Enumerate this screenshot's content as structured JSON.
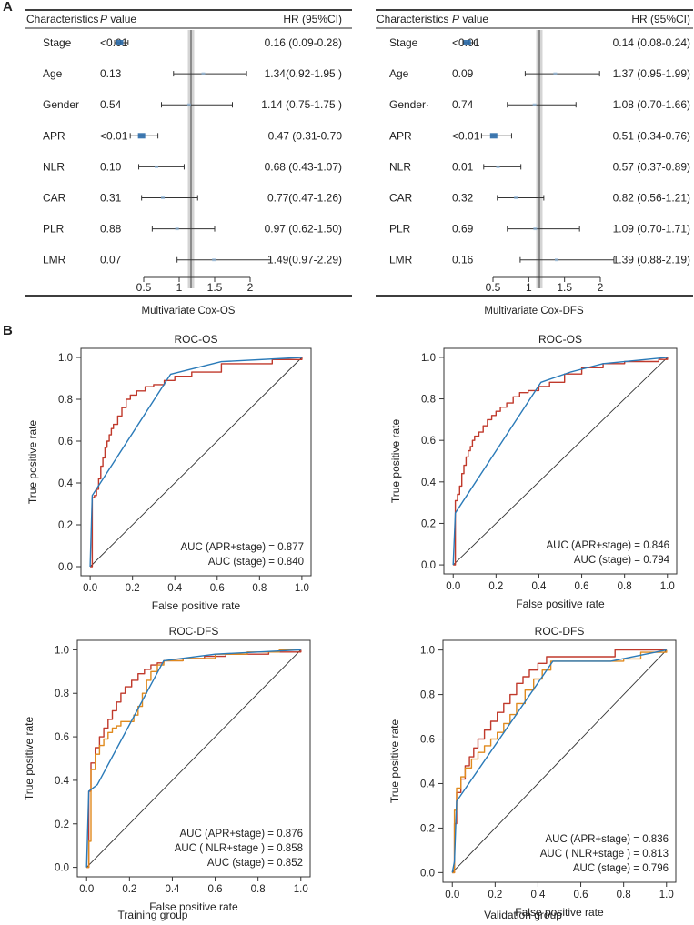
{
  "panel_a_label": "A",
  "panel_b_label": "B",
  "forest_plots": [
    {
      "header": {
        "characteristics": "Characteristics",
        "p_value": "P value",
        "hr": "HR (95%CI)"
      },
      "caption": "Multivariate Cox-OS",
      "axis_ticks": [
        "0.5",
        "1",
        "1.5",
        "2"
      ],
      "rows": [
        {
          "name": "Stage",
          "p": "<0.01",
          "hr_text": "0.16 (0.09-0.28)",
          "hr": 0.16,
          "low": 0.09,
          "high": 0.28
        },
        {
          "name": "Age",
          "p": "0.13",
          "hr_text": "1.34(0.92-1.95 )",
          "hr": 1.34,
          "low": 0.92,
          "high": 1.95
        },
        {
          "name": "Gender",
          "p": "0.54",
          "hr_text": "1.14 (0.75-1.75 )",
          "hr": 1.14,
          "low": 0.75,
          "high": 1.75
        },
        {
          "name": "APR",
          "p": "<0.01",
          "hr_text": "0.47 (0.31-0.70",
          "hr": 0.47,
          "low": 0.31,
          "high": 0.7
        },
        {
          "name": "NLR",
          "p": "0.10",
          "hr_text": "0.68 (0.43-1.07)",
          "hr": 0.68,
          "low": 0.43,
          "high": 1.07
        },
        {
          "name": "CAR",
          "p": "0.31",
          "hr_text": "0.77(0.47-1.26)",
          "hr": 0.77,
          "low": 0.47,
          "high": 1.26
        },
        {
          "name": "PLR",
          "p": "0.88",
          "hr_text": "0.97 (0.62-1.50)",
          "hr": 0.97,
          "low": 0.62,
          "high": 1.5
        },
        {
          "name": "LMR",
          "p": "0.07",
          "hr_text": "1.49(0.97-2.29)",
          "hr": 1.49,
          "low": 0.97,
          "high": 2.29
        }
      ]
    },
    {
      "header": {
        "characteristics": "Characteristics",
        "p_value": "P value",
        "hr": "HR (95%CI)"
      },
      "caption": "Multivariate Cox-DFS",
      "axis_ticks": [
        "0.5",
        "1",
        "1.5",
        "2"
      ],
      "rows": [
        {
          "name": "Stage",
          "p": "<0.01",
          "hr_text": "0.14 (0.08-0.24)",
          "hr": 0.14,
          "low": 0.08,
          "high": 0.24
        },
        {
          "name": "Age",
          "p": "0.09",
          "hr_text": "1.37 (0.95-1.99)",
          "hr": 1.37,
          "low": 0.95,
          "high": 1.99
        },
        {
          "name": "Gender·",
          "p": "0.74",
          "hr_text": "1.08 (0.70-1.66)",
          "hr": 1.08,
          "low": 0.7,
          "high": 1.66
        },
        {
          "name": "APR",
          "p": "<0.01",
          "hr_text": "0.51 (0.34-0.76)",
          "hr": 0.51,
          "low": 0.34,
          "high": 0.76
        },
        {
          "name": "NLR",
          "p": "0.01",
          "hr_text": "0.57 (0.37-0.89)",
          "hr": 0.57,
          "low": 0.37,
          "high": 0.89
        },
        {
          "name": "CAR",
          "p": "0.32",
          "hr_text": "0.82 (0.56-1.21)",
          "hr": 0.82,
          "low": 0.56,
          "high": 1.21
        },
        {
          "name": "PLR",
          "p": "0.69",
          "hr_text": "1.09 (0.70-1.71)",
          "hr": 1.09,
          "low": 0.7,
          "high": 1.71
        },
        {
          "name": "LMR",
          "p": "0.16",
          "hr_text": "1.39 (0.88-2.19)",
          "hr": 1.39,
          "low": 0.88,
          "high": 2.19
        }
      ]
    }
  ],
  "group_labels": {
    "training": "Training group",
    "validation": "Validation group"
  },
  "colors": {
    "red": "#c0392b",
    "orange": "#e08a1e",
    "blue": "#2a7ab8",
    "refline": "#9a9a9a"
  },
  "chart_data": [
    {
      "type": "line",
      "title": "ROC-OS",
      "xlabel": "False positive rate",
      "ylabel": "True positive rate",
      "xlim": [
        0,
        1
      ],
      "ylim": [
        0,
        1
      ],
      "ticks": [
        "0.0",
        "0.2",
        "0.4",
        "0.6",
        "0.8",
        "1.0"
      ],
      "series": [
        {
          "name": "AUC (APR+stage) = 0.877",
          "color": "red",
          "step": true,
          "x": [
            0,
            0.01,
            0.01,
            0.02,
            0.03,
            0.04,
            0.05,
            0.06,
            0.07,
            0.08,
            0.09,
            0.1,
            0.11,
            0.13,
            0.15,
            0.17,
            0.19,
            0.22,
            0.26,
            0.3,
            0.35,
            0.4,
            0.48,
            0.62,
            0.72,
            0.86,
            0.86,
            1.0
          ],
          "y": [
            0,
            0.24,
            0.33,
            0.34,
            0.37,
            0.42,
            0.48,
            0.52,
            0.57,
            0.6,
            0.63,
            0.66,
            0.68,
            0.72,
            0.76,
            0.8,
            0.82,
            0.84,
            0.86,
            0.87,
            0.89,
            0.91,
            0.93,
            0.97,
            0.97,
            0.97,
            0.99,
            1.0
          ]
        },
        {
          "name": "AUC (stage) = 0.840",
          "color": "blue",
          "step": false,
          "x": [
            0,
            0.01,
            0.38,
            0.62,
            1.0
          ],
          "y": [
            0,
            0.34,
            0.92,
            0.98,
            1.0
          ]
        }
      ]
    },
    {
      "type": "line",
      "title": "ROC-OS",
      "xlabel": "False positive rate",
      "ylabel": "True positive rate",
      "xlim": [
        0,
        1
      ],
      "ylim": [
        0,
        1
      ],
      "ticks": [
        "0.0",
        "0.2",
        "0.4",
        "0.6",
        "0.8",
        "1.0"
      ],
      "series": [
        {
          "name": "AUC (APR+stage) = 0.846",
          "color": "red",
          "step": true,
          "x": [
            0,
            0.01,
            0.02,
            0.03,
            0.04,
            0.05,
            0.06,
            0.07,
            0.08,
            0.09,
            0.1,
            0.12,
            0.14,
            0.16,
            0.18,
            0.2,
            0.22,
            0.25,
            0.28,
            0.31,
            0.35,
            0.4,
            0.45,
            0.52,
            0.6,
            0.7,
            0.8,
            0.92,
            0.96,
            1.0
          ],
          "y": [
            0,
            0.31,
            0.34,
            0.38,
            0.44,
            0.48,
            0.52,
            0.55,
            0.57,
            0.6,
            0.62,
            0.64,
            0.67,
            0.7,
            0.72,
            0.74,
            0.76,
            0.78,
            0.81,
            0.83,
            0.84,
            0.86,
            0.88,
            0.92,
            0.95,
            0.97,
            0.98,
            0.98,
            0.99,
            1.0
          ]
        },
        {
          "name": "AUC (stage) = 0.794",
          "color": "blue",
          "step": false,
          "x": [
            0,
            0.01,
            0.41,
            0.55,
            0.7,
            1.0
          ],
          "y": [
            0,
            0.25,
            0.88,
            0.93,
            0.97,
            1.0
          ]
        }
      ]
    },
    {
      "type": "line",
      "title": "ROC-DFS",
      "xlabel": "False positive rate",
      "ylabel": "True positive rate",
      "xlim": [
        0,
        1
      ],
      "ylim": [
        0,
        1
      ],
      "ticks": [
        "0.0",
        "0.2",
        "0.4",
        "0.6",
        "0.8",
        "1.0"
      ],
      "series": [
        {
          "name": "AUC (APR+stage) = 0.876",
          "color": "red",
          "step": true,
          "x": [
            0,
            0.01,
            0.02,
            0.04,
            0.06,
            0.08,
            0.1,
            0.12,
            0.14,
            0.16,
            0.18,
            0.21,
            0.24,
            0.27,
            0.3,
            0.33,
            0.36,
            0.45,
            0.55,
            0.65,
            0.85,
            0.85,
            1.0
          ],
          "y": [
            0,
            0.35,
            0.48,
            0.55,
            0.6,
            0.64,
            0.68,
            0.72,
            0.76,
            0.8,
            0.83,
            0.86,
            0.89,
            0.91,
            0.93,
            0.94,
            0.95,
            0.96,
            0.97,
            0.98,
            0.98,
            0.99,
            1.0
          ]
        },
        {
          "name": "AUC ( NLR+stage ) = 0.858",
          "color": "orange",
          "step": true,
          "x": [
            0,
            0.01,
            0.02,
            0.04,
            0.06,
            0.08,
            0.1,
            0.12,
            0.14,
            0.16,
            0.2,
            0.22,
            0.24,
            0.26,
            0.28,
            0.3,
            0.33,
            0.36,
            0.45,
            0.6,
            0.75,
            0.9,
            1.0
          ],
          "y": [
            0,
            0.12,
            0.45,
            0.52,
            0.56,
            0.59,
            0.62,
            0.64,
            0.65,
            0.67,
            0.67,
            0.7,
            0.74,
            0.8,
            0.86,
            0.9,
            0.93,
            0.95,
            0.96,
            0.98,
            0.99,
            1.0,
            1.0
          ]
        },
        {
          "name": "AUC (stage) = 0.852",
          "color": "blue",
          "step": false,
          "x": [
            0,
            0.01,
            0.05,
            0.36,
            0.6,
            1.0
          ],
          "y": [
            0,
            0.35,
            0.38,
            0.95,
            0.98,
            1.0
          ]
        }
      ]
    },
    {
      "type": "line",
      "title": "ROC-DFS",
      "xlabel": "False positive rate",
      "ylabel": "True positive rate",
      "xlim": [
        0,
        1
      ],
      "ylim": [
        0,
        1
      ],
      "ticks": [
        "0.0",
        "0.2",
        "0.4",
        "0.6",
        "0.8",
        "1.0"
      ],
      "series": [
        {
          "name": "AUC (APR+stage) = 0.836",
          "color": "red",
          "step": true,
          "x": [
            0,
            0.01,
            0.02,
            0.04,
            0.06,
            0.08,
            0.1,
            0.12,
            0.15,
            0.18,
            0.21,
            0.24,
            0.27,
            0.3,
            0.33,
            0.36,
            0.4,
            0.44,
            0.48,
            0.6,
            0.72,
            0.76,
            0.9,
            1.0
          ],
          "y": [
            0,
            0.22,
            0.36,
            0.42,
            0.48,
            0.52,
            0.56,
            0.6,
            0.64,
            0.68,
            0.72,
            0.76,
            0.8,
            0.85,
            0.88,
            0.91,
            0.94,
            0.97,
            0.97,
            0.97,
            0.97,
            1.0,
            1.0,
            1.0
          ]
        },
        {
          "name": "AUC ( NLR+stage ) = 0.813",
          "color": "orange",
          "step": true,
          "x": [
            0,
            0.01,
            0.02,
            0.04,
            0.06,
            0.09,
            0.12,
            0.15,
            0.18,
            0.21,
            0.24,
            0.27,
            0.3,
            0.34,
            0.38,
            0.42,
            0.46,
            0.55,
            0.7,
            0.8,
            0.88,
            1.0
          ],
          "y": [
            0,
            0.28,
            0.38,
            0.43,
            0.47,
            0.51,
            0.54,
            0.57,
            0.6,
            0.63,
            0.67,
            0.71,
            0.76,
            0.82,
            0.87,
            0.91,
            0.95,
            0.95,
            0.95,
            0.96,
            0.99,
            1.0
          ]
        },
        {
          "name": "AUC (stage) = 0.796",
          "color": "blue",
          "step": false,
          "x": [
            0,
            0.01,
            0.02,
            0.47,
            0.74,
            1.0
          ],
          "y": [
            0,
            0.05,
            0.32,
            0.95,
            0.95,
            1.0
          ]
        }
      ]
    }
  ]
}
